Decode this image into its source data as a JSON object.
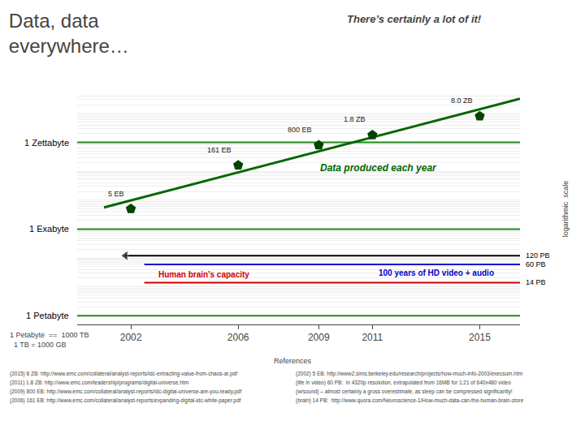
{
  "chart_data": {
    "type": "line",
    "title": "Data, data\neverywhere…",
    "subtitle": "There’s certainly a lot of it!",
    "ylabel": "logarithmic  scale",
    "log": "y",
    "grid": "y",
    "tick_labels": "x",
    "xlim": [
      2000,
      2016.5
    ],
    "xticks": [
      2002,
      2006,
      2009,
      2011,
      2015
    ],
    "ylim": [
      500000000000000.0,
      5e+22
    ],
    "yticks": [
      1000000000000000.0,
      2000000000000000.0,
      3000000000000000.0,
      4000000000000000.0,
      5000000000000000.0,
      6000000000000000.0,
      7000000000000000.0,
      8000000000000000.0,
      9000000000000000.0,
      1e+16,
      2e+16,
      3e+16,
      4e+16,
      5e+16,
      6e+16,
      7e+16,
      8e+16,
      9e+16,
      1e+17,
      2e+17,
      3e+17,
      4e+17,
      5e+17,
      6e+17,
      7e+17,
      8e+17,
      9e+17,
      1e+18,
      2e+18,
      3e+18,
      4e+18,
      5e+18,
      6e+18,
      7e+18,
      8e+18,
      9e+18,
      1e+19,
      2e+19,
      3e+19,
      4e+19,
      5e+19,
      6e+19,
      7e+19,
      8e+19,
      9e+19,
      1e+20,
      2e+20,
      3e+20,
      4e+20,
      5e+20,
      6e+20,
      7e+20,
      8e+20,
      9e+20,
      1e+21,
      2e+21,
      3e+21,
      4e+21,
      5e+21,
      6e+21,
      7e+21,
      8e+21,
      9e+21,
      1e+22,
      2e+22,
      3e+22,
      4e+22,
      5e+22
    ],
    "series": [
      {
        "name": "1 Zettabyte",
        "type": "line",
        "color": "#228822",
        "x": [
          2000,
          2016.5
        ],
        "values": [
          1e+21,
          1e+21
        ]
      },
      {
        "name": "1 Exabyte",
        "type": "line",
        "color": "#228822",
        "x": [
          2000,
          2016.5
        ],
        "values": [
          1e+18,
          1e+18
        ]
      },
      {
        "name": "1 Petabyte",
        "type": "line",
        "color": "#228822",
        "x": [
          2000,
          2016.5
        ],
        "values": [
          1000000000000000.0,
          1000000000000000.0
        ]
      },
      {
        "name": "120 PB",
        "type": "line",
        "color": "#000000",
        "marker": "arrow",
        "x": [
          2001.8,
          2016.5
        ],
        "values": [
          1.2e+17,
          1.2e+17
        ]
      },
      {
        "name": "60 PB",
        "type": "line",
        "color": "#0000cc",
        "x": [
          2002.5,
          2016.5
        ],
        "values": [
          6e+16,
          6e+16
        ],
        "annotation": "100 years of HD video + audio"
      },
      {
        "name": "14 PB",
        "type": "line",
        "color": "#cc0000",
        "x": [
          2002.5,
          2016.5
        ],
        "values": [
          1.4e+16,
          1.4e+16
        ],
        "annotation": "Human brain’s capacity"
      },
      {
        "type": "line",
        "color": "#006600",
        "x": [
          2001,
          2016.5
        ],
        "values": [
          5.597e+18,
          3.249e+22
        ],
        "annotation": "Data produced each year"
      },
      {
        "type": "scatter",
        "marker": "pentagon",
        "color": "#004400",
        "x": [
          2002,
          2006,
          2009,
          2011,
          2015
        ],
        "values": [
          5e+18,
          1.61e+20,
          8e+20,
          1.8e+21,
          8e+21
        ],
        "data_labels": true,
        "value_labels": [
          "5 EB",
          "161 EB",
          "800 EB",
          "1.8 ZB",
          "8.0 ZB"
        ]
      }
    ],
    "note": "1 Petabyte  ==  1000 TB\n  1 TB = 1000 GB",
    "references": {
      "title": "References",
      "left": [
        "(2015) 8 ZB: http://www.emc.com/collateral/analyst-reports/idc-extracting-value-from-chaos-ar.pdf",
        "(2011) 1.8 ZB: http://www.emc.com/leadership/programs/digital-universe.htm",
        "(2009) 800 EB: http://www.emc.com/collateral/analyst-reports/idc-digital-universe-are-you-ready.pdf",
        "(2006) 161 EB: http://www.emc.com/collateral/analyst-reports/expanding-digital-idc-white-paper.pdf"
      ],
      "right": [
        "(2002) 5 EB: http://www2.sims.berkeley.edu/research/projects/how-much-info-2003/execsum.htm",
        "(life in video) 60 PB:  in 4320p resolution, extrapolated from 16MB for 1:21 of 640x480 video",
        "(w/sound) – almost certainly a gross overestimate, as sleep can be compressed significantly!",
        "(brain) 14 PB:  http://www.quora.com/Neuroscience-1/How-much-data-can-the-human-brain-store"
      ]
    }
  }
}
